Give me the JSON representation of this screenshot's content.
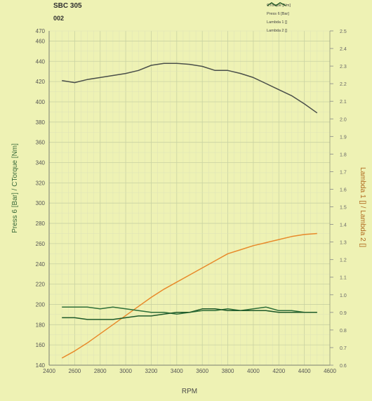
{
  "header": {
    "title": "SBC 305",
    "subtitle": "002"
  },
  "legend": {
    "placement": "top-right",
    "items": [
      {
        "label": "CTorque [Nm]",
        "color": "#4a4f4a"
      },
      {
        "label": "Press 6 [Bar]",
        "color": "#e8892a"
      },
      {
        "label": "Lambda 1 []",
        "color": "#2e6e38"
      },
      {
        "label": "Lambda 2 []",
        "color": "#1f5a2a"
      }
    ]
  },
  "chart_data": {
    "type": "line",
    "xlabel": "RPM",
    "ylabel_left": "Press 6 [Bar] / CTorque [Nm]",
    "ylabel_right": "Lambda 1 [] / Lambda 2 []",
    "xlim": [
      2400,
      4600
    ],
    "ylim_left": [
      140,
      470
    ],
    "ylim_right": [
      0.6,
      2.5
    ],
    "grid": true,
    "x_ticks": [
      "2400",
      "2600",
      "2800",
      "3000",
      "3200",
      "3400",
      "3600",
      "3800",
      "4000",
      "4200",
      "4400",
      "4600"
    ],
    "y_ticks_left": [
      "140",
      "160",
      "180",
      "200",
      "220",
      "240",
      "260",
      "280",
      "300",
      "320",
      "340",
      "360",
      "380",
      "400",
      "420",
      "440",
      "460",
      "470"
    ],
    "y_ticks_right": [
      "0.6",
      "0.7",
      "0.8",
      "0.9",
      "1.0",
      "1.1",
      "1.2",
      "1.3",
      "1.4",
      "1.5",
      "1.6",
      "1.7",
      "1.8",
      "1.9",
      "2.0",
      "2.1",
      "2.2",
      "2.3",
      "2.4",
      "2.5"
    ],
    "series": [
      {
        "name": "CTorque [Nm]",
        "axis": "left",
        "color": "#4a4f4a",
        "x": [
          2500,
          2600,
          2700,
          2800,
          2900,
          3000,
          3100,
          3200,
          3300,
          3400,
          3500,
          3600,
          3700,
          3800,
          3900,
          4000,
          4100,
          4200,
          4300,
          4400,
          4500
        ],
        "y": [
          421,
          419,
          422,
          424,
          426,
          428,
          431,
          436,
          438,
          438,
          437,
          435,
          431,
          431,
          428,
          424,
          418,
          412,
          406,
          398,
          389
        ]
      },
      {
        "name": "Press 6 [Bar]",
        "axis": "left",
        "color": "#e8892a",
        "x": [
          2500,
          2600,
          2700,
          2800,
          2900,
          3000,
          3100,
          3200,
          3300,
          3400,
          3500,
          3600,
          3700,
          3800,
          3900,
          4000,
          4100,
          4200,
          4300,
          4400,
          4500
        ],
        "y": [
          147,
          154,
          162,
          171,
          180,
          189,
          198,
          207,
          215,
          222,
          229,
          236,
          243,
          250,
          254,
          258,
          261,
          264,
          267,
          269,
          270
        ]
      },
      {
        "name": "Lambda 1 []",
        "axis": "right",
        "color": "#2e6e38",
        "x": [
          2500,
          2600,
          2700,
          2800,
          2900,
          3000,
          3100,
          3200,
          3300,
          3400,
          3500,
          3600,
          3700,
          3800,
          3900,
          4000,
          4100,
          4200,
          4300,
          4400,
          4500
        ],
        "y": [
          0.93,
          0.93,
          0.93,
          0.92,
          0.93,
          0.92,
          0.91,
          0.9,
          0.9,
          0.89,
          0.9,
          0.91,
          0.91,
          0.92,
          0.91,
          0.92,
          0.93,
          0.91,
          0.91,
          0.9,
          0.9
        ]
      },
      {
        "name": "Lambda 2 []",
        "axis": "right",
        "color": "#1f5a2a",
        "x": [
          2500,
          2600,
          2700,
          2800,
          2900,
          3000,
          3100,
          3200,
          3300,
          3400,
          3500,
          3600,
          3700,
          3800,
          3900,
          4000,
          4100,
          4200,
          4300,
          4400,
          4500
        ],
        "y": [
          0.87,
          0.87,
          0.86,
          0.86,
          0.86,
          0.87,
          0.88,
          0.88,
          0.89,
          0.9,
          0.9,
          0.92,
          0.92,
          0.91,
          0.91,
          0.91,
          0.91,
          0.9,
          0.9,
          0.9,
          0.9
        ]
      }
    ]
  }
}
